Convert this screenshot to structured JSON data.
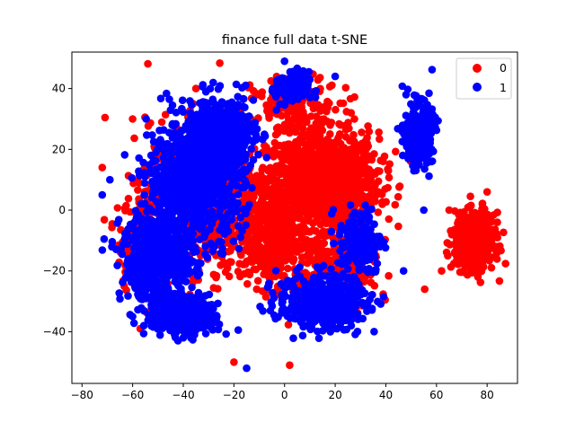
{
  "chart_data": {
    "type": "scatter",
    "title": "finance full data t-SNE",
    "xlabel": "",
    "ylabel": "",
    "xlim": [
      -84,
      92
    ],
    "ylim": [
      -57,
      52
    ],
    "xticks": [
      -80,
      -60,
      -40,
      -20,
      0,
      20,
      40,
      60,
      80
    ],
    "yticks": [
      -40,
      -20,
      0,
      20,
      40
    ],
    "xtick_labels": [
      "−80",
      "−60",
      "−40",
      "−20",
      "0",
      "20",
      "40",
      "60",
      "80"
    ],
    "ytick_labels": [
      "−40",
      "−20",
      "0",
      "20",
      "40"
    ],
    "grid": false,
    "legend_position": "top-right",
    "series": [
      {
        "name": "0",
        "color": "#ff0000",
        "clusters": [
          {
            "center": [
              15,
              10
            ],
            "spread": [
              20,
              14
            ],
            "count": 1300
          },
          {
            "center": [
              -5,
              -10
            ],
            "spread": [
              12,
              14
            ],
            "count": 380
          },
          {
            "center": [
              -30,
              5
            ],
            "spread": [
              22,
              22
            ],
            "count": 750
          },
          {
            "center": [
              -55,
              -10
            ],
            "spread": [
              10,
              14
            ],
            "count": 220
          },
          {
            "center": [
              75,
              -10
            ],
            "spread": [
              7,
              8
            ],
            "count": 620
          },
          {
            "center": [
              20,
              -20
            ],
            "spread": [
              15,
              12
            ],
            "count": 280
          },
          {
            "center": [
              5,
              35
            ],
            "spread": [
              16,
              8
            ],
            "count": 160
          }
        ],
        "sample_points": [
          [
            -72,
            14
          ],
          [
            -60,
            30
          ],
          [
            80,
            6
          ],
          [
            65,
            0
          ],
          [
            62,
            -20
          ],
          [
            -20,
            -50
          ],
          [
            2,
            -51
          ],
          [
            -35,
            40
          ],
          [
            37,
            6
          ],
          [
            -57,
            -39
          ]
        ]
      },
      {
        "name": "1",
        "color": "#0000ff",
        "clusters": [
          {
            "center": [
              -35,
              10
            ],
            "spread": [
              17,
              17
            ],
            "count": 900
          },
          {
            "center": [
              -50,
              -15
            ],
            "spread": [
              13,
              13
            ],
            "count": 550
          },
          {
            "center": [
              -25,
              25
            ],
            "spread": [
              12,
              12
            ],
            "count": 450
          },
          {
            "center": [
              53,
              25
            ],
            "spread": [
              5,
              9
            ],
            "count": 300
          },
          {
            "center": [
              15,
              -30
            ],
            "spread": [
              16,
              8
            ],
            "count": 450
          },
          {
            "center": [
              -40,
              -35
            ],
            "spread": [
              13,
              6
            ],
            "count": 300
          },
          {
            "center": [
              3,
              40
            ],
            "spread": [
              6,
              5
            ],
            "count": 140
          },
          {
            "center": [
              30,
              -10
            ],
            "spread": [
              8,
              10
            ],
            "count": 180
          }
        ],
        "sample_points": [
          [
            -69,
            10
          ],
          [
            -72,
            5
          ],
          [
            0,
            49
          ],
          [
            48,
            38
          ],
          [
            -15,
            -52
          ],
          [
            -40,
            -42
          ],
          [
            55,
            0
          ],
          [
            47,
            -20
          ],
          [
            -60,
            -35
          ],
          [
            20,
            44
          ]
        ]
      }
    ]
  }
}
